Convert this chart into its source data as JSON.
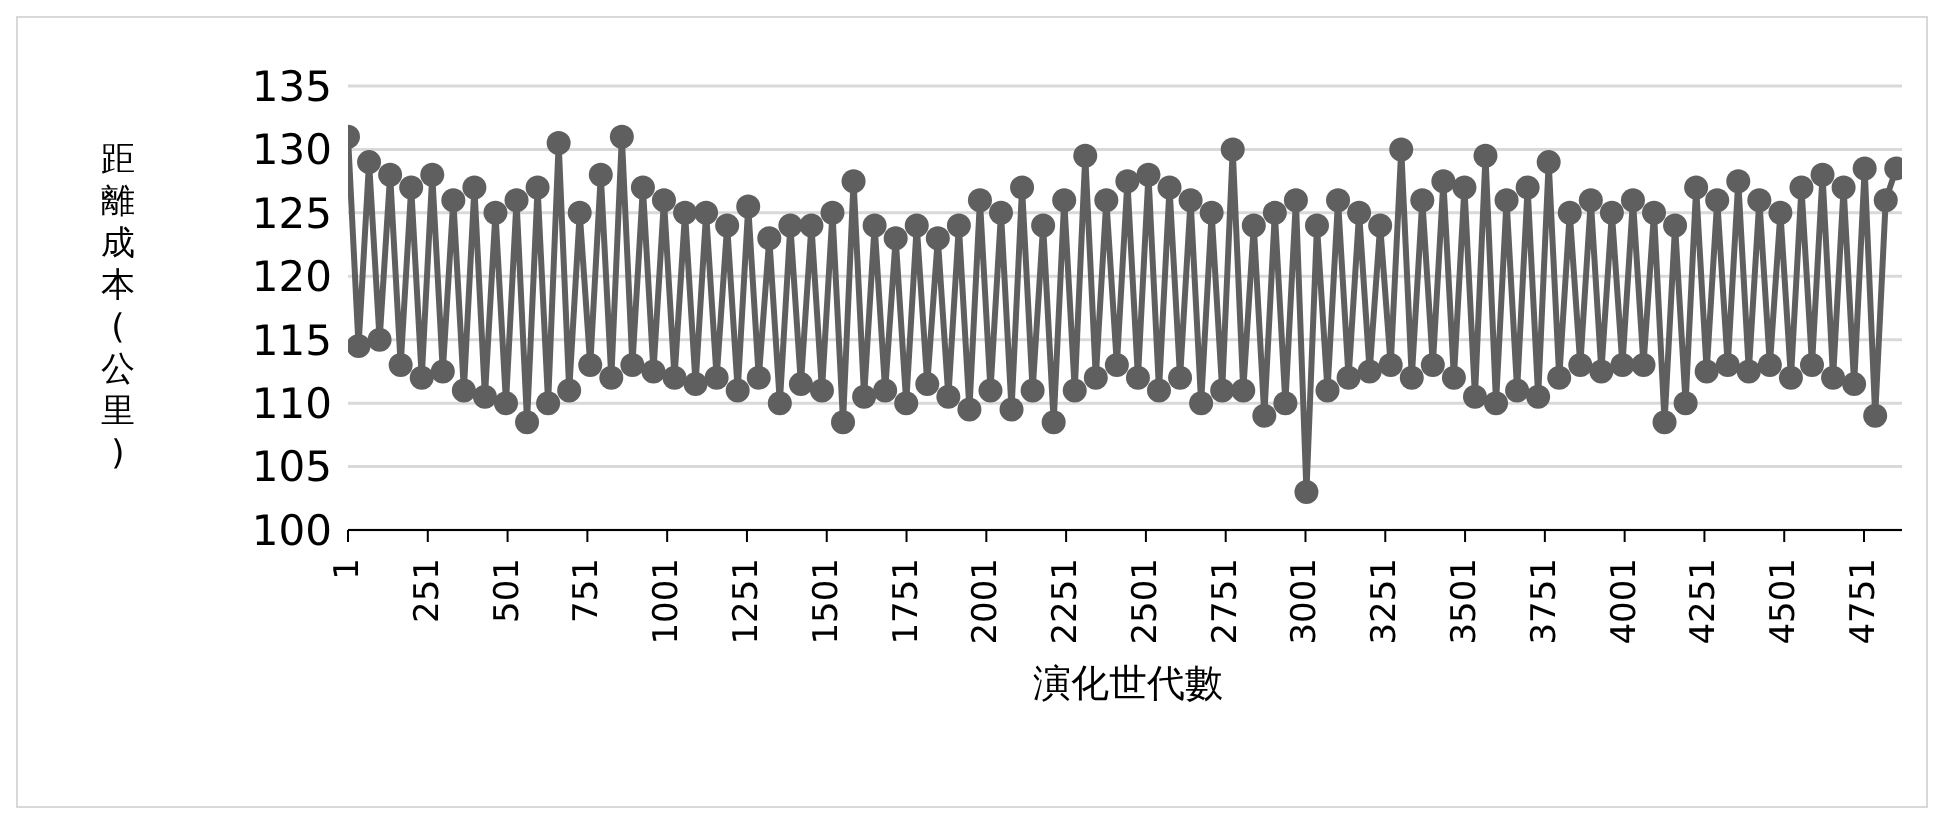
{
  "chart_data": {
    "type": "line",
    "xlabel": "演化世代數",
    "ylabel": "距離成本(公里)",
    "x": [
      1,
      34,
      67,
      100,
      133,
      166,
      199,
      232,
      265,
      298,
      331,
      364,
      397,
      430,
      463,
      496,
      529,
      562,
      595,
      628,
      661,
      694,
      727,
      760,
      793,
      826,
      859,
      892,
      925,
      958,
      991,
      1024,
      1057,
      1090,
      1123,
      1156,
      1189,
      1222,
      1255,
      1288,
      1321,
      1354,
      1387,
      1420,
      1453,
      1486,
      1519,
      1552,
      1585,
      1618,
      1651,
      1684,
      1717,
      1750,
      1783,
      1816,
      1849,
      1882,
      1915,
      1948,
      1981,
      2014,
      2047,
      2080,
      2113,
      2146,
      2179,
      2212,
      2245,
      2278,
      2311,
      2344,
      2377,
      2410,
      2443,
      2476,
      2509,
      2542,
      2575,
      2608,
      2641,
      2674,
      2707,
      2740,
      2773,
      2806,
      2839,
      2872,
      2905,
      2938,
      2971,
      3004,
      3037,
      3070,
      3103,
      3136,
      3169,
      3202,
      3235,
      3268,
      3301,
      3334,
      3367,
      3400,
      3433,
      3466,
      3499,
      3532,
      3565,
      3598,
      3631,
      3664,
      3697,
      3730,
      3763,
      3796,
      3829,
      3862,
      3895,
      3928,
      3961,
      3994,
      4027,
      4060,
      4093,
      4126,
      4159,
      4192,
      4225,
      4258,
      4291,
      4324,
      4357,
      4390,
      4423,
      4456,
      4489,
      4522,
      4555,
      4588,
      4621,
      4654,
      4687,
      4720,
      4753,
      4786,
      4819,
      4852
    ],
    "values": [
      131,
      114.5,
      129,
      115,
      128,
      113,
      127,
      112,
      128,
      112.5,
      126,
      111,
      127,
      110.5,
      125,
      110,
      126,
      108.5,
      127,
      110,
      130.5,
      111,
      125,
      113,
      128,
      112,
      131,
      113,
      127,
      112.5,
      126,
      112,
      125,
      111.5,
      125,
      112,
      124,
      111,
      125.5,
      112,
      123,
      110,
      124,
      111.5,
      124,
      111,
      125,
      108.5,
      127.5,
      110.5,
      124,
      111,
      123,
      110,
      124,
      111.5,
      123,
      110.5,
      124,
      109.5,
      126,
      111,
      125,
      109.5,
      127,
      111,
      124,
      108.5,
      126,
      111,
      129.5,
      112,
      126,
      113,
      127.5,
      112,
      128,
      111,
      127,
      112,
      126,
      110,
      125,
      111,
      130,
      111,
      124,
      109,
      125,
      110,
      126,
      103,
      124,
      111,
      126,
      112,
      125,
      112.5,
      124,
      113,
      130,
      112,
      126,
      113,
      127.5,
      112,
      127,
      110.5,
      129.5,
      110,
      126,
      111,
      127,
      110.5,
      129,
      112,
      125,
      113,
      126,
      112.5,
      125,
      113,
      126,
      113,
      125,
      108.5,
      124,
      110,
      127,
      112.5,
      126,
      113,
      127.5,
      112.5,
      126,
      113,
      125,
      112,
      127,
      113,
      128,
      112,
      127,
      111.5,
      128.5,
      109,
      126,
      128.5
    ],
    "color": "#5f5f5f",
    "marker": "circle",
    "line_style": "solid",
    "xlim": [
      1,
      4870
    ],
    "xticks": [
      1,
      251,
      501,
      751,
      1001,
      1251,
      1501,
      1751,
      2001,
      2251,
      2501,
      2751,
      3001,
      3251,
      3501,
      3751,
      4001,
      4251,
      4501,
      4751
    ],
    "ylim": [
      100,
      135
    ],
    "yticks": [
      100,
      105,
      110,
      115,
      120,
      125,
      130,
      135
    ],
    "grid": "y"
  }
}
